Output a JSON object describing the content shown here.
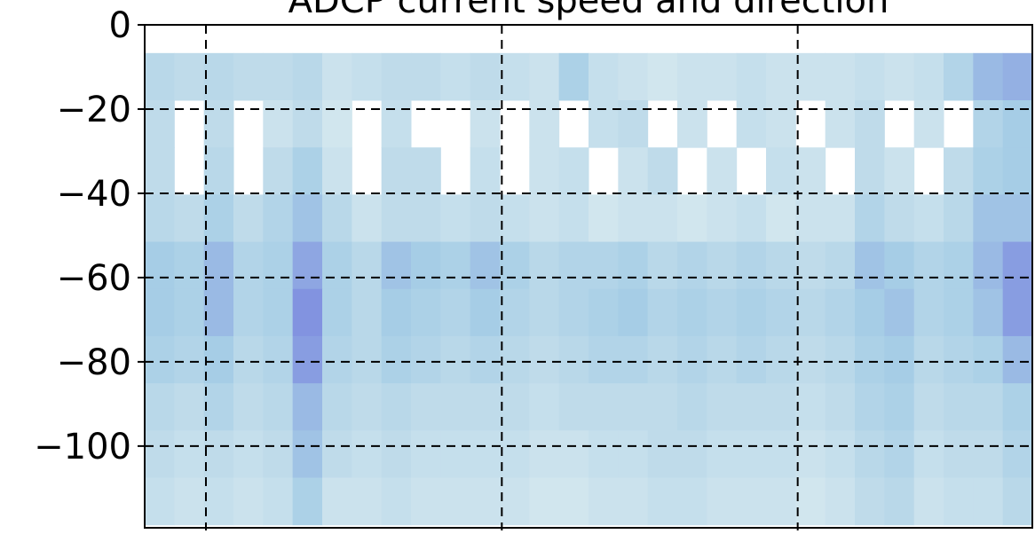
{
  "chart_data": {
    "type": "heatmap",
    "title": "ADCP current speed and direction",
    "x": [
      0.05,
      0.15,
      0.25,
      0.35,
      0.45,
      0.55,
      0.65,
      0.75,
      0.85,
      0.95,
      1.05,
      1.15,
      1.25,
      1.35,
      1.45,
      1.55,
      1.65,
      1.75,
      1.85,
      1.95,
      2.05,
      2.15,
      2.25,
      2.35,
      2.45,
      2.55,
      2.65,
      2.75,
      2.85,
      2.95
    ],
    "y": [
      -12.3,
      -23.5,
      -34.7,
      -45.9,
      -57.1,
      -68.3,
      -79.5,
      -90.7,
      -101.9,
      -113.1
    ],
    "values": [
      [
        0.35,
        0.3,
        0.35,
        0.3,
        0.3,
        0.35,
        0.2,
        0.25,
        0.3,
        0.3,
        0.25,
        0.3,
        0.25,
        0.2,
        0.45,
        0.25,
        0.2,
        0.15,
        0.2,
        0.2,
        0.25,
        0.2,
        0.2,
        0.2,
        0.25,
        0.2,
        0.25,
        0.4,
        0.6,
        0.65
      ],
      [
        0.3,
        null,
        0.3,
        null,
        0.2,
        0.3,
        0.15,
        null,
        0.25,
        null,
        null,
        0.2,
        null,
        0.2,
        null,
        0.25,
        0.3,
        null,
        0.2,
        null,
        0.25,
        0.2,
        null,
        0.2,
        0.3,
        null,
        0.2,
        null,
        0.4,
        0.5
      ],
      [
        0.3,
        null,
        0.35,
        null,
        0.3,
        0.45,
        0.2,
        null,
        0.3,
        0.3,
        null,
        0.25,
        null,
        0.2,
        0.25,
        null,
        0.2,
        0.3,
        null,
        0.2,
        null,
        0.25,
        0.2,
        null,
        0.3,
        0.2,
        null,
        0.3,
        0.45,
        0.5
      ],
      [
        0.35,
        0.3,
        0.45,
        0.3,
        0.4,
        0.55,
        0.35,
        0.2,
        0.3,
        0.3,
        0.25,
        0.3,
        0.25,
        0.2,
        0.25,
        0.15,
        0.2,
        0.2,
        0.15,
        0.2,
        0.25,
        0.15,
        0.2,
        0.2,
        0.4,
        0.3,
        0.25,
        0.35,
        0.55,
        0.55
      ],
      [
        0.5,
        0.45,
        0.6,
        0.4,
        0.45,
        0.7,
        0.45,
        0.35,
        0.55,
        0.5,
        0.45,
        0.55,
        0.45,
        0.35,
        0.4,
        0.4,
        0.45,
        0.35,
        0.4,
        0.35,
        0.4,
        0.35,
        0.3,
        0.35,
        0.55,
        0.5,
        0.4,
        0.45,
        0.6,
        0.75
      ],
      [
        0.5,
        0.45,
        0.6,
        0.4,
        0.45,
        0.8,
        0.45,
        0.35,
        0.5,
        0.45,
        0.4,
        0.5,
        0.4,
        0.35,
        0.4,
        0.45,
        0.5,
        0.4,
        0.45,
        0.4,
        0.45,
        0.4,
        0.35,
        0.4,
        0.5,
        0.55,
        0.4,
        0.45,
        0.55,
        0.75
      ],
      [
        0.45,
        0.4,
        0.5,
        0.35,
        0.4,
        0.75,
        0.4,
        0.35,
        0.45,
        0.4,
        0.35,
        0.4,
        0.35,
        0.3,
        0.35,
        0.4,
        0.4,
        0.35,
        0.4,
        0.35,
        0.4,
        0.35,
        0.3,
        0.35,
        0.45,
        0.5,
        0.35,
        0.4,
        0.45,
        0.6
      ],
      [
        0.35,
        0.3,
        0.4,
        0.3,
        0.35,
        0.6,
        0.35,
        0.3,
        0.35,
        0.3,
        0.3,
        0.3,
        0.3,
        0.25,
        0.3,
        0.3,
        0.3,
        0.3,
        0.35,
        0.3,
        0.3,
        0.3,
        0.25,
        0.3,
        0.4,
        0.45,
        0.3,
        0.35,
        0.35,
        0.45
      ],
      [
        0.3,
        0.25,
        0.3,
        0.25,
        0.3,
        0.55,
        0.3,
        0.25,
        0.3,
        0.25,
        0.25,
        0.25,
        0.25,
        0.2,
        0.2,
        0.25,
        0.25,
        0.3,
        0.3,
        0.25,
        0.25,
        0.25,
        0.2,
        0.25,
        0.35,
        0.4,
        0.25,
        0.3,
        0.3,
        0.4
      ],
      [
        0.25,
        0.2,
        0.25,
        0.2,
        0.25,
        0.45,
        0.2,
        0.2,
        0.25,
        0.2,
        0.2,
        0.2,
        0.2,
        0.15,
        0.15,
        0.2,
        0.2,
        0.25,
        0.25,
        0.2,
        0.2,
        0.2,
        0.15,
        0.2,
        0.3,
        0.35,
        0.2,
        0.25,
        0.25,
        0.35
      ]
    ],
    "clim": [
      0,
      1
    ],
    "colors": [
      "#e4f0f1",
      "#a6cde6",
      "#6a6cdc"
    ],
    "xlim": [
      0,
      3
    ],
    "xticks": [
      0.207,
      1.207,
      2.207
    ],
    "ylim": [
      -119.4,
      0
    ],
    "yticks": [
      0,
      {
        "value": -20,
        "label": "−20"
      },
      {
        "value": -40,
        "label": "−40"
      },
      {
        "value": -60,
        "label": "−60"
      },
      {
        "value": -80,
        "label": "−80"
      },
      {
        "value": -100,
        "label": "−100"
      }
    ],
    "grid": true
  }
}
